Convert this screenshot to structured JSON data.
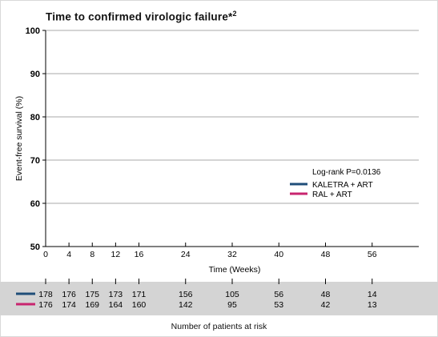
{
  "chart_data": {
    "type": "line",
    "title": "Time to confirmed virologic failure*",
    "title_superscript": "2",
    "xlabel": "Time (Weeks)",
    "ylabel": "Event-free survival (%)",
    "xlim": [
      0,
      64
    ],
    "ylim": [
      50,
      100
    ],
    "x_ticks": [
      0,
      4,
      8,
      12,
      16,
      24,
      32,
      40,
      48,
      56
    ],
    "y_ticks": [
      50,
      60,
      70,
      80,
      90,
      100
    ],
    "grid": "horizontal",
    "legend_placement": "center-right",
    "annotation": "Log-rank P=0.0136",
    "series": [
      {
        "name": "KALETRA + ART",
        "color": "#1f4e79",
        "x": [],
        "y": []
      },
      {
        "name": "RAL + ART",
        "color": "#c8256f",
        "x": [],
        "y": []
      }
    ],
    "at_risk": {
      "title": "Number of patients at risk",
      "timepoints": [
        0,
        4,
        8,
        12,
        16,
        24,
        32,
        40,
        48,
        56
      ],
      "rows": [
        {
          "series": "KALETRA + ART",
          "color": "#1f4e79",
          "values": [
            178,
            176,
            175,
            173,
            171,
            156,
            105,
            56,
            48,
            14
          ]
        },
        {
          "series": "RAL + ART",
          "color": "#c8256f",
          "values": [
            176,
            174,
            169,
            164,
            160,
            142,
            95,
            53,
            42,
            13
          ]
        }
      ]
    }
  }
}
